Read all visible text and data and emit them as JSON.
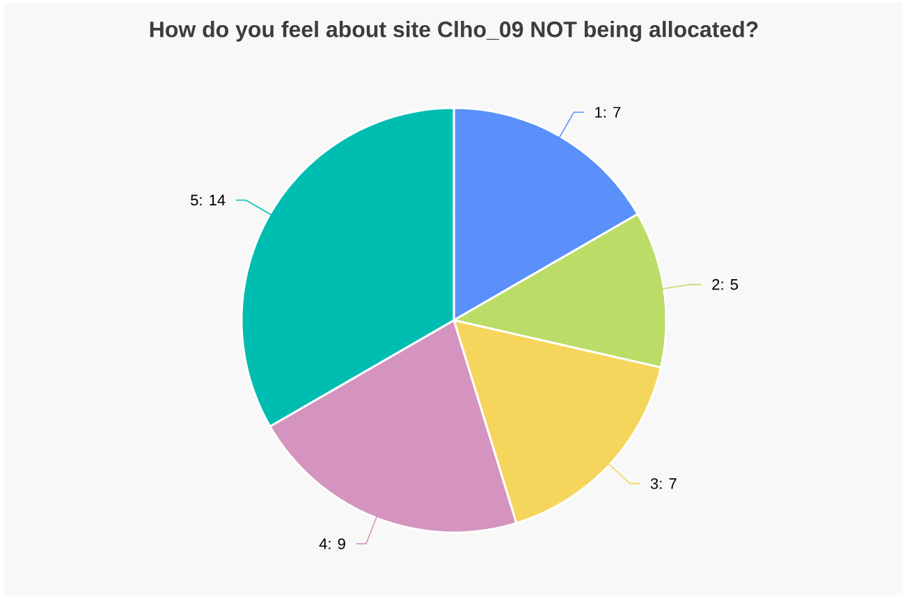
{
  "chart_data": {
    "type": "pie",
    "title": "How do you feel about site Clho_09 NOT being allocated?",
    "categories": [
      "1",
      "2",
      "3",
      "4",
      "5"
    ],
    "values": [
      7,
      5,
      7,
      9,
      14
    ],
    "colors": [
      "#5b8ff9",
      "#bbdc66",
      "#f6d55c",
      "#d494bf",
      "#00bdb2"
    ],
    "value_labels": [
      ": 7",
      ": 5",
      ": 7",
      ": 9",
      ": 14"
    ]
  }
}
